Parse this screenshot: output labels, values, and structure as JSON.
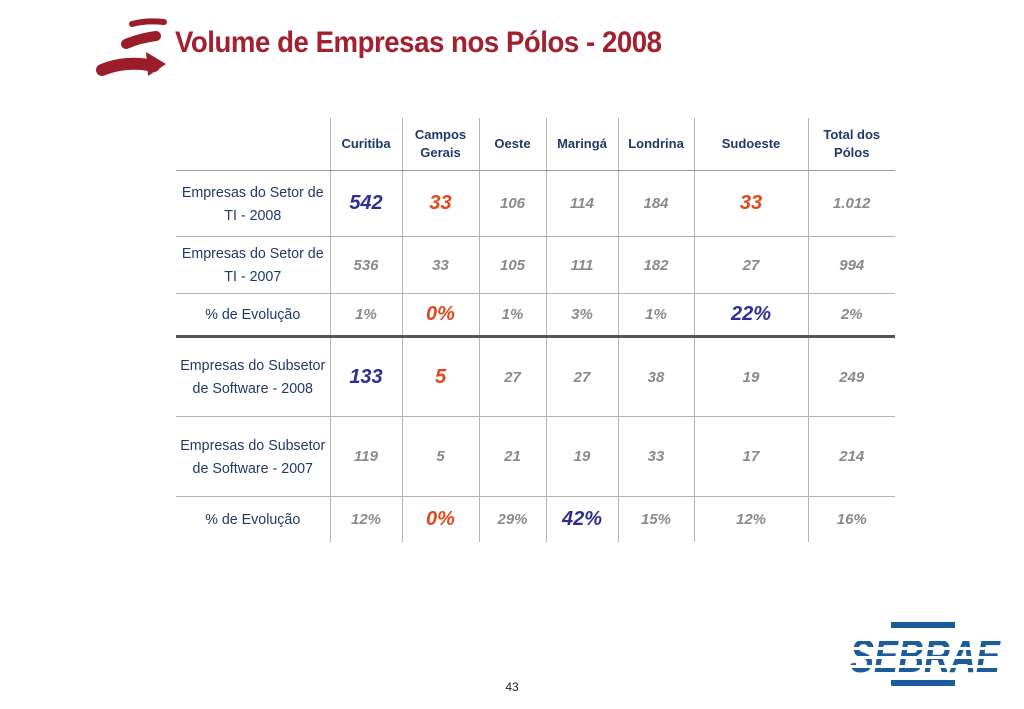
{
  "slide": {
    "title": "Volume de Empresas nos Pólos - 2008",
    "page_number": "43",
    "brand": "SEBRAE"
  },
  "colors": {
    "title": "#a3202f",
    "highlight_blue": "#2e2f8f",
    "highlight_orange": "#e2481e",
    "value_gray": "#8a8a8a",
    "header_navy": "#1f3a6a",
    "brand_blue": "#1d5c9b"
  },
  "table": {
    "columns": [
      "",
      "Curitiba",
      "Campos Gerais",
      "Oeste",
      "Maringá",
      "Londrina",
      "Sudoeste",
      "Total dos Pólos"
    ],
    "rows": [
      {
        "label": "Empresas do Setor de TI - 2008",
        "cells": [
          {
            "value": "542",
            "style": "blue"
          },
          {
            "value": "33",
            "style": "orange"
          },
          {
            "value": "106",
            "style": "gray"
          },
          {
            "value": "114",
            "style": "gray"
          },
          {
            "value": "184",
            "style": "gray"
          },
          {
            "value": "33",
            "style": "orange"
          },
          {
            "value": "1.012",
            "style": "gray"
          }
        ]
      },
      {
        "label": "Empresas do Setor de TI - 2007",
        "cells": [
          {
            "value": "536",
            "style": "gray"
          },
          {
            "value": "33",
            "style": "gray"
          },
          {
            "value": "105",
            "style": "gray"
          },
          {
            "value": "111",
            "style": "gray"
          },
          {
            "value": "182",
            "style": "gray"
          },
          {
            "value": "27",
            "style": "gray"
          },
          {
            "value": "994",
            "style": "gray"
          }
        ]
      },
      {
        "label": "% de Evolução",
        "cells": [
          {
            "value": "1%",
            "style": "gray"
          },
          {
            "value": "0%",
            "style": "orange"
          },
          {
            "value": "1%",
            "style": "gray"
          },
          {
            "value": "3%",
            "style": "gray"
          },
          {
            "value": "1%",
            "style": "gray"
          },
          {
            "value": "22%",
            "style": "blue"
          },
          {
            "value": "2%",
            "style": "gray"
          }
        ]
      },
      {
        "label": "Empresas do Subsetor de Software - 2008",
        "cells": [
          {
            "value": "133",
            "style": "blue"
          },
          {
            "value": "5",
            "style": "orange"
          },
          {
            "value": "27",
            "style": "gray"
          },
          {
            "value": "27",
            "style": "gray"
          },
          {
            "value": "38",
            "style": "gray"
          },
          {
            "value": "19",
            "style": "gray"
          },
          {
            "value": "249",
            "style": "gray"
          }
        ]
      },
      {
        "label": "Empresas do Subsetor de Software - 2007",
        "cells": [
          {
            "value": "119",
            "style": "gray"
          },
          {
            "value": "5",
            "style": "gray"
          },
          {
            "value": "21",
            "style": "gray"
          },
          {
            "value": "19",
            "style": "gray"
          },
          {
            "value": "33",
            "style": "gray"
          },
          {
            "value": "17",
            "style": "gray"
          },
          {
            "value": "214",
            "style": "gray"
          }
        ]
      },
      {
        "label": "% de Evolução",
        "cells": [
          {
            "value": "12%",
            "style": "gray"
          },
          {
            "value": "0%",
            "style": "orange"
          },
          {
            "value": "29%",
            "style": "gray"
          },
          {
            "value": "42%",
            "style": "blue"
          },
          {
            "value": "15%",
            "style": "gray"
          },
          {
            "value": "12%",
            "style": "gray"
          },
          {
            "value": "16%",
            "style": "gray"
          }
        ]
      }
    ]
  }
}
